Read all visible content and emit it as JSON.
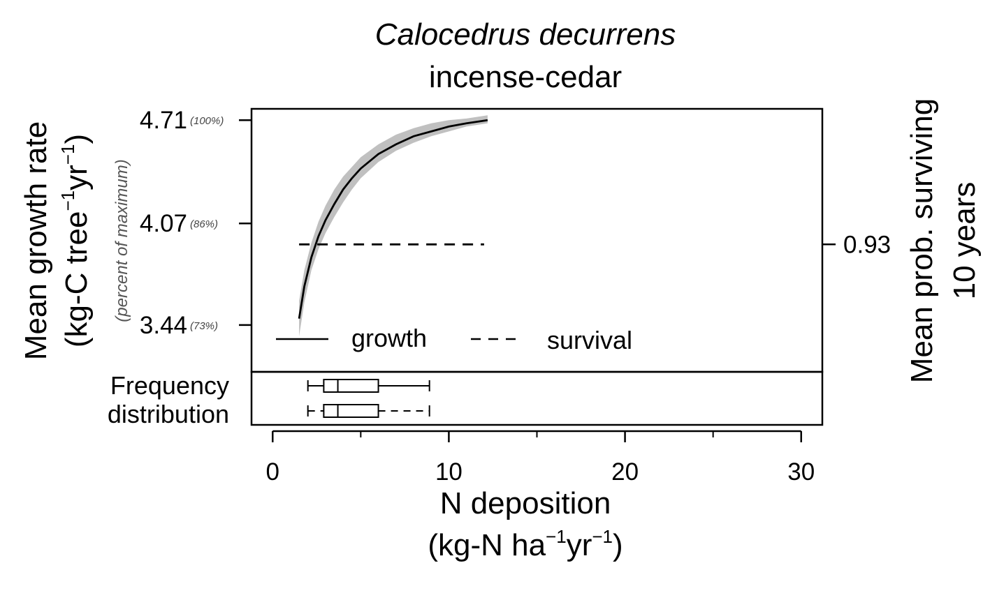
{
  "chart_data": {
    "type": "line",
    "title": "Calocedrus decurrens",
    "subtitle": "incense-cedar",
    "xlabel": "N deposition",
    "xlabel_units": {
      "prefix": "(kg-N ha",
      "sup1": "−1",
      "mid": "yr",
      "sup2": "−1",
      "suffix": ")"
    },
    "ylabel": "Mean growth rate",
    "ylabel_units": {
      "prefix": "(kg-C tree",
      "sup1": "−1",
      "mid": "yr",
      "sup2": "−1",
      "suffix": ")"
    },
    "ylabel_secondary": "(percent of maximum)",
    "y2label_line1": "Mean prob. surviving",
    "y2label_line2": "10 years",
    "xlim": [
      -1.2,
      31.2
    ],
    "ylim": [
      3.15,
      4.78
    ],
    "x_ticks": [
      0,
      10,
      20,
      30
    ],
    "x_minor_ticks": [
      5,
      15,
      25
    ],
    "y_ticks": [
      {
        "value": 4.71,
        "label": "4.71",
        "pct": "(100%)"
      },
      {
        "value": 4.07,
        "label": "4.07",
        "pct": "(86%)"
      },
      {
        "value": 3.44,
        "label": "3.44",
        "pct": "(73%)"
      }
    ],
    "y2_ticks": [
      {
        "value": 3.94,
        "label": "0.93"
      }
    ],
    "series": [
      {
        "name": "growth",
        "style": "solid",
        "x": [
          1.5,
          1.8,
          2.2,
          2.6,
          3.0,
          3.5,
          4.0,
          4.5,
          5.0,
          6.0,
          7.0,
          8.0,
          9.0,
          10.0,
          11.0,
          12.2
        ],
        "values": [
          3.48,
          3.68,
          3.86,
          3.99,
          4.09,
          4.19,
          4.28,
          4.35,
          4.41,
          4.5,
          4.56,
          4.61,
          4.64,
          4.67,
          4.69,
          4.71
        ],
        "band_upper": [
          3.59,
          3.78,
          3.95,
          4.08,
          4.18,
          4.28,
          4.36,
          4.42,
          4.48,
          4.56,
          4.62,
          4.66,
          4.69,
          4.71,
          4.72,
          4.74
        ],
        "band_lower": [
          3.37,
          3.58,
          3.78,
          3.91,
          4.01,
          4.11,
          4.2,
          4.28,
          4.35,
          4.45,
          4.52,
          4.57,
          4.61,
          4.64,
          4.67,
          4.69
        ]
      },
      {
        "name": "survival",
        "style": "dashed",
        "x": [
          1.5,
          12.0
        ],
        "values": [
          3.94,
          3.94
        ]
      }
    ],
    "band_color": "#c0c0c0",
    "line_color": "#000000",
    "legend": {
      "placement": "bottom-left",
      "items": [
        "growth",
        "survival"
      ]
    },
    "frequency_label_line1": "Frequency",
    "frequency_label_line2": "distribution",
    "boxplots": [
      {
        "whisker_low": 2.0,
        "q1": 2.9,
        "median": 3.7,
        "q3": 6.0,
        "whisker_high": 8.9,
        "whisker_style": "solid"
      },
      {
        "whisker_low": 2.0,
        "q1": 2.9,
        "median": 3.7,
        "q3": 6.0,
        "whisker_high": 8.9,
        "whisker_style": "dashed"
      }
    ]
  }
}
